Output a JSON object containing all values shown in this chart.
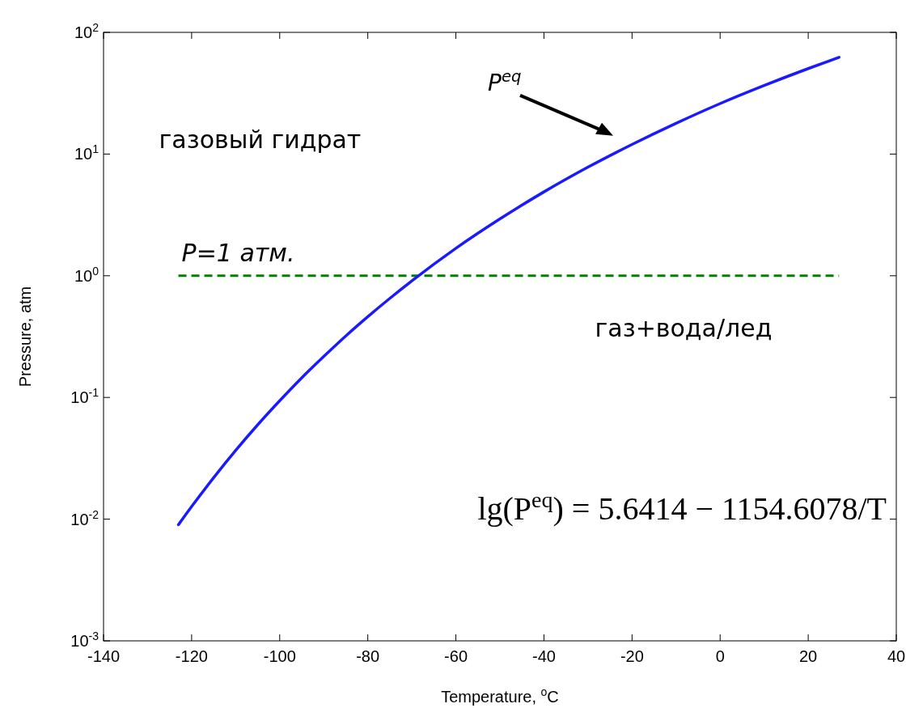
{
  "chart_data": {
    "type": "line",
    "xlabel": "Temperature, $^{o}$C",
    "ylabel": "Pressure, atm",
    "log": "y",
    "xlim": [
      -140,
      40
    ],
    "xticks": [
      -140,
      -120,
      -100,
      -80,
      -60,
      -40,
      -20,
      0,
      20,
      40
    ],
    "ylim": [
      0.001,
      100
    ],
    "yticks": [
      {
        "value": 0.001,
        "label": "10$^{-3}$"
      },
      {
        "value": 0.01,
        "label": "10$^{-2}$"
      },
      {
        "value": 0.1,
        "label": "10$^{-1}$"
      },
      {
        "value": 1,
        "label": "10$^{0}$"
      },
      {
        "value": 10,
        "label": "10$^{1}$"
      },
      {
        "value": 100,
        "label": "10$^{2}$"
      }
    ],
    "grid": false,
    "line_style": "solid",
    "series": [
      {
        "color": "#1a1aff",
        "x": [
          -123,
          -120,
          -115,
          -110,
          -105,
          -100,
          -95,
          -90,
          -85,
          -80,
          -75,
          -70,
          -60,
          -50,
          -40,
          -30,
          -20,
          -10,
          0,
          10,
          20,
          27
        ],
        "values": [
          0.009,
          0.0127,
          0.0219,
          0.0367,
          0.0596,
          0.094,
          0.145,
          0.217,
          0.32,
          0.461,
          0.652,
          0.907,
          1.68,
          2.93,
          4.89,
          7.81,
          12.0,
          17.9,
          26.0,
          36.6,
          50.4,
          62.3
        ]
      }
    ],
    "ref_lines": [
      {
        "axis": "y",
        "value": 1,
        "label": "P=1 атм.",
        "color": "#008000",
        "line_style": "dashed"
      }
    ],
    "annotations": [
      "газовый гидрат",
      "газ+вода/лед",
      "P$^{eq}$",
      "lg(P$^{eq}$) = 5.6414 − 1154.6078/T"
    ]
  }
}
